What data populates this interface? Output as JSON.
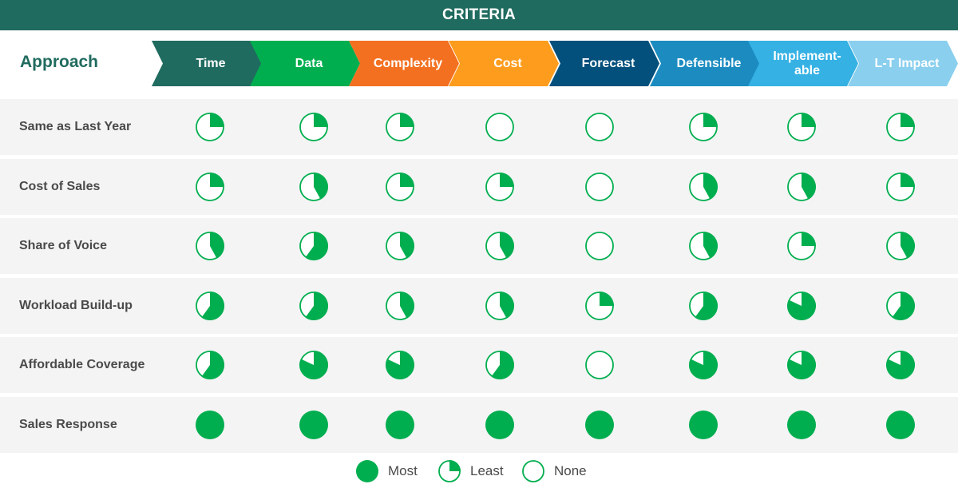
{
  "header": {
    "title": "CRITERIA"
  },
  "approach_label": "Approach",
  "criteria": [
    {
      "label": "Time",
      "color": "#206b5f"
    },
    {
      "label": "Data",
      "color": "#00ae4f"
    },
    {
      "label": "Complexity",
      "color": "#f37021"
    },
    {
      "label": "Cost",
      "color": "#fd9c1d"
    },
    {
      "label": "Forecast",
      "color": "#03507c"
    },
    {
      "label": "Defensible",
      "color": "#1c8cc0"
    },
    {
      "label": "Implement-\nable",
      "color": "#35b1e4"
    },
    {
      "label": "L-T Impact",
      "color": "#8acfee"
    }
  ],
  "rows": [
    {
      "label": "Same as Last Year",
      "values": [
        0.25,
        0.25,
        0.25,
        0,
        0,
        0.25,
        0.25,
        0.25
      ]
    },
    {
      "label": "Cost of Sales",
      "values": [
        0.25,
        0.42,
        0.25,
        0.25,
        0,
        0.42,
        0.42,
        0.25
      ]
    },
    {
      "label": "Share of Voice",
      "values": [
        0.42,
        0.6,
        0.42,
        0.42,
        0,
        0.42,
        0.25,
        0.42
      ]
    },
    {
      "label": "Workload Build-up",
      "values": [
        0.6,
        0.6,
        0.42,
        0.42,
        0.25,
        0.6,
        0.82,
        0.6
      ]
    },
    {
      "label": "Affordable Coverage",
      "values": [
        0.6,
        0.82,
        0.82,
        0.6,
        0,
        0.82,
        0.82,
        0.82
      ]
    },
    {
      "label": "Sales Response",
      "values": [
        1,
        1,
        1,
        1,
        1,
        1,
        1,
        1
      ]
    }
  ],
  "legend": [
    {
      "label": "Most",
      "value": 1
    },
    {
      "label": "Least",
      "value": 0.25
    },
    {
      "label": "None",
      "value": 0
    }
  ],
  "colors": {
    "pie_green": "#00ae4f",
    "header_bg": "#206b5f",
    "row_bg": "#f4f4f4",
    "label_text": "#4a4a4a"
  }
}
